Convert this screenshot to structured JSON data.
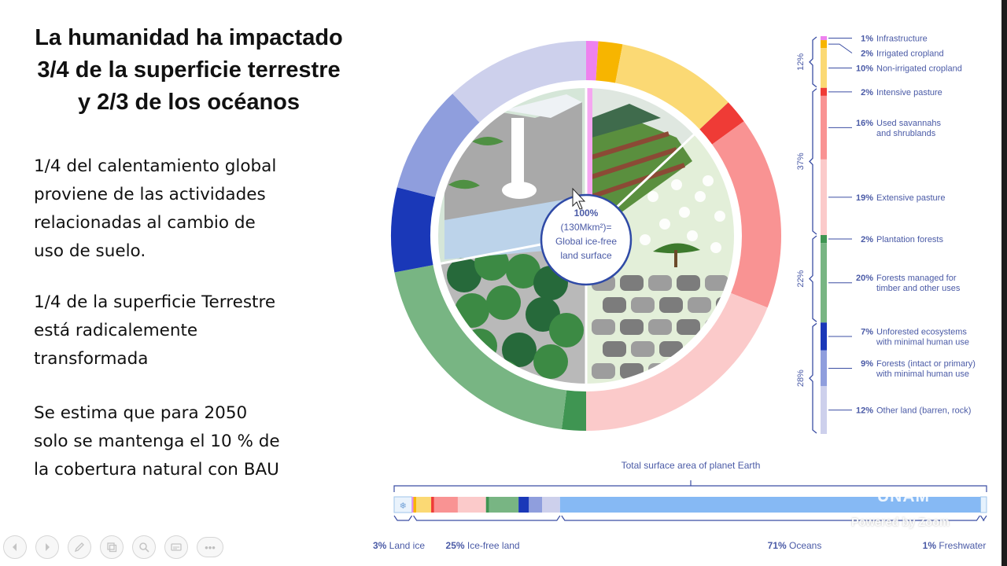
{
  "slide": {
    "title_lines": [
      "La humanidad ha impactado",
      "3/4 de la superficie terrestre",
      "y 2/3 de los océanos"
    ],
    "paragraphs": [
      [
        "1/4 del calentamiento global",
        "proviene de las actividades",
        "relacionadas al cambio de",
        "uso de suelo."
      ],
      [
        "1/4 de la superficie Terrestre",
        "está radicalemente",
        "transformada"
      ],
      [
        "Se estima que para 2050",
        "solo se mantenga el 10 % de",
        "la cobertura natural con BAU"
      ]
    ]
  },
  "chart_data": {
    "type": "pie",
    "center_label": [
      "100%",
      "(130Mkm²)=",
      "Global ice-free",
      "land surface"
    ],
    "slices": [
      {
        "pct": "1%",
        "label": [
          "Infrastructure"
        ],
        "value": 1,
        "color": "#ee82ee",
        "group": 0
      },
      {
        "pct": "2%",
        "label": [
          "Irrigated cropland"
        ],
        "value": 2,
        "color": "#f7b500",
        "group": 0
      },
      {
        "pct": "10%",
        "label": [
          "Non-irrigated cropland"
        ],
        "value": 10,
        "color": "#fbd974",
        "group": 0
      },
      {
        "pct": "2%",
        "label": [
          "Intensive pasture"
        ],
        "value": 2,
        "color": "#ef3b36",
        "group": 1
      },
      {
        "pct": "16%",
        "label": [
          "Used savannahs",
          "and shrublands"
        ],
        "value": 16,
        "color": "#f99393",
        "group": 1
      },
      {
        "pct": "19%",
        "label": [
          "Extensive pasture"
        ],
        "value": 19,
        "color": "#fbcaca",
        "group": 1
      },
      {
        "pct": "2%",
        "label": [
          "Plantation forests"
        ],
        "value": 2,
        "color": "#3f9552",
        "group": 2
      },
      {
        "pct": "20%",
        "label": [
          "Forests managed for",
          "timber and other uses"
        ],
        "value": 20,
        "color": "#78b583",
        "group": 2
      },
      {
        "pct": "7%",
        "label": [
          "Unforested ecosystems",
          "with minimal human use"
        ],
        "value": 7,
        "color": "#1a38b8",
        "group": 3
      },
      {
        "pct": "9%",
        "label": [
          "Forests (intact or primary)",
          "with minimal human use"
        ],
        "value": 9,
        "color": "#8f9edd",
        "group": 3
      },
      {
        "pct": "12%",
        "label": [
          "Other land (barren, rock)"
        ],
        "value": 12,
        "color": "#cdd0ec",
        "group": 3
      }
    ],
    "groups": [
      {
        "label": "12%"
      },
      {
        "label": "37%"
      },
      {
        "label": "22%"
      },
      {
        "label": "28%"
      }
    ],
    "earth_bar": {
      "title": "Total surface area of planet Earth",
      "segments": [
        {
          "pct": "3%",
          "label": "Land ice",
          "value": 3
        },
        {
          "pct": "25%",
          "label": "Ice-free land",
          "value": 25
        },
        {
          "pct": "71%",
          "label": "Oceans",
          "value": 71,
          "color": "#86b9f4"
        },
        {
          "pct": "1%",
          "label": "Freshwater",
          "value": 1,
          "color": "#e6f2fd"
        }
      ]
    },
    "colors": {
      "accent": "#3b4ea3",
      "text": "#4a5aa6",
      "ocean": "#86b9f4"
    }
  },
  "overlay": {
    "unam_text": "UNAM",
    "zoom_text": "Powered by Zoom"
  },
  "toolbar": {
    "buttons": [
      "prev-icon",
      "next-icon",
      "pen-icon",
      "slides-icon",
      "zoom-icon",
      "subtitle-icon",
      "more-icon"
    ],
    "more_label": "•••"
  }
}
